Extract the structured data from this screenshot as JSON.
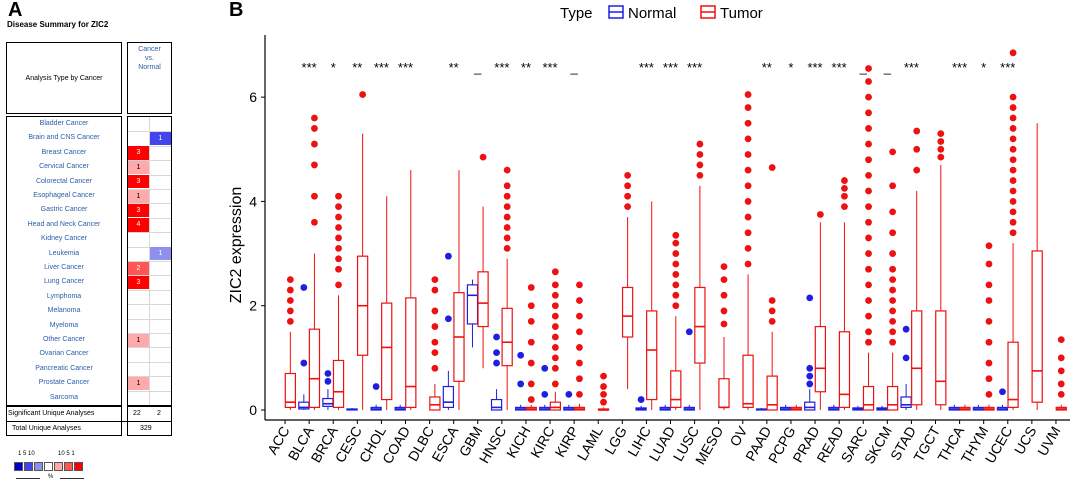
{
  "panel_a": {
    "letter": "A",
    "title": "Disease Summary for ZIC2",
    "header_left": "Analysis Type by Cancer",
    "header_right": "Cancer\nvs.\nNormal",
    "rows": [
      {
        "label": "Bladder Cancer",
        "up": "",
        "down": ""
      },
      {
        "label": "Brain and CNS Cancer",
        "up": "",
        "down": "1"
      },
      {
        "label": "Breast Cancer",
        "up": "3",
        "down": ""
      },
      {
        "label": "Cervical Cancer",
        "up": "1",
        "down": ""
      },
      {
        "label": "Colorectal Cancer",
        "up": "3",
        "down": ""
      },
      {
        "label": "Esophageal Cancer",
        "up": "1",
        "down": ""
      },
      {
        "label": "Gastric Cancer",
        "up": "3",
        "down": ""
      },
      {
        "label": "Head and Neck Cancer",
        "up": "4",
        "down": ""
      },
      {
        "label": "Kidney Cancer",
        "up": "",
        "down": ""
      },
      {
        "label": "Leukemia",
        "up": "",
        "down": "1"
      },
      {
        "label": "Liver Cancer",
        "up": "2",
        "down": ""
      },
      {
        "label": "Lung Cancer",
        "up": "3",
        "down": ""
      },
      {
        "label": "Lymphoma",
        "up": "",
        "down": ""
      },
      {
        "label": "Melanoma",
        "up": "",
        "down": ""
      },
      {
        "label": "Myeloma",
        "up": "",
        "down": ""
      },
      {
        "label": "Other Cancer",
        "up": "1",
        "down": ""
      },
      {
        "label": "Ovarian Cancer",
        "up": "",
        "down": ""
      },
      {
        "label": "Pancreatic Cancer",
        "up": "",
        "down": ""
      },
      {
        "label": "Prostate Cancer",
        "up": "1",
        "down": ""
      },
      {
        "label": "Sarcoma",
        "up": "",
        "down": ""
      }
    ],
    "cell_colors": {
      "up_strong": "#ff0000",
      "up_mid": "#ff5555",
      "up_weak": "#ffaaaa",
      "down_weak": "#8f8fee",
      "down_strong": "#4444ee"
    },
    "summary_sig_label": "Significant Unique Analyses",
    "summary_sig_up": "22",
    "summary_sig_down": "2",
    "summary_total_label": "Total Unique Analyses",
    "summary_total": "329",
    "legend_labels": {
      "left": "1  5  10",
      "right": "10  5  1",
      "unit": "%"
    },
    "legend_colors": [
      "#0000cc",
      "#4444ee",
      "#8f8fee",
      "#ffffff",
      "#ffaaaa",
      "#ff5555",
      "#ff0000"
    ]
  },
  "panel_b": {
    "letter": "B",
    "legend_title": "Type",
    "legend_normal": "Normal",
    "legend_tumor": "Tumor",
    "normal_color": "#1f1fe0",
    "tumor_color": "#ee1111"
  },
  "chart_data": {
    "type": "box",
    "title": "",
    "ylabel": "ZIC2 expression",
    "xlabel": "",
    "ylim": [
      0,
      7
    ],
    "yticks": [
      0,
      2,
      4,
      6
    ],
    "series_names": [
      "Normal",
      "Tumor"
    ],
    "categories": [
      "ACC",
      "BLCA",
      "BRCA",
      "CESC",
      "CHOL",
      "COAD",
      "DLBC",
      "ESCA",
      "GBM",
      "HNSC",
      "KICH",
      "KIRC",
      "KIRP",
      "LAML",
      "LGG",
      "LIHC",
      "LUAD",
      "LUSC",
      "MESO",
      "OV",
      "PAAD",
      "PCPG",
      "PRAD",
      "READ",
      "SARC",
      "SKCM",
      "STAD",
      "TGCT",
      "THCA",
      "THYM",
      "UCEC",
      "UCS",
      "UVM"
    ],
    "significance": [
      "",
      "***",
      "*",
      "**",
      "***",
      "***",
      "",
      "**",
      "_",
      "***",
      "**",
      "***",
      "_",
      "",
      "",
      "***",
      "***",
      "***",
      "",
      "",
      "**",
      "*",
      "***",
      "***",
      "_",
      "_",
      "***",
      "",
      "***",
      "*",
      "***",
      "",
      ""
    ],
    "tumor": [
      {
        "q1": 0.05,
        "med": 0.15,
        "q3": 0.7,
        "lo": 0.0,
        "hi": 1.5,
        "out": [
          1.7,
          1.9,
          2.1,
          2.3,
          2.5
        ]
      },
      {
        "q1": 0.05,
        "med": 0.6,
        "q3": 1.55,
        "lo": 0.0,
        "hi": 3.0,
        "out": [
          3.6,
          4.1,
          4.7,
          5.1,
          5.4,
          5.6
        ]
      },
      {
        "q1": 0.05,
        "med": 0.35,
        "q3": 0.95,
        "lo": 0.0,
        "hi": 2.2,
        "out": [
          2.4,
          2.7,
          2.9,
          3.1,
          3.3,
          3.5,
          3.7,
          3.9,
          4.1
        ]
      },
      {
        "q1": 1.05,
        "med": 2.0,
        "q3": 2.95,
        "lo": 0.0,
        "hi": 5.3,
        "out": [
          6.05
        ]
      },
      {
        "q1": 0.2,
        "med": 1.2,
        "q3": 2.05,
        "lo": 0.0,
        "hi": 4.1,
        "out": []
      },
      {
        "q1": 0.05,
        "med": 0.45,
        "q3": 2.15,
        "lo": 0.0,
        "hi": 4.6,
        "out": []
      },
      {
        "q1": 0.0,
        "med": 0.1,
        "q3": 0.25,
        "lo": 0.0,
        "hi": 0.5,
        "out": [
          0.8,
          1.1,
          1.3,
          1.6,
          1.9,
          2.3,
          2.5
        ]
      },
      {
        "q1": 0.55,
        "med": 1.4,
        "q3": 2.25,
        "lo": 0.0,
        "hi": 4.6,
        "out": []
      },
      {
        "q1": 1.6,
        "med": 2.05,
        "q3": 2.65,
        "lo": 0.8,
        "hi": 3.9,
        "out": [
          4.85
        ]
      },
      {
        "q1": 0.85,
        "med": 1.3,
        "q3": 1.95,
        "lo": 0.0,
        "hi": 2.9,
        "out": [
          3.1,
          3.3,
          3.5,
          3.7,
          3.9,
          4.1,
          4.3,
          4.6
        ]
      },
      {
        "q1": 0.0,
        "med": 0.02,
        "q3": 0.05,
        "lo": 0.0,
        "hi": 0.1,
        "out": [
          0.2,
          0.5,
          0.9,
          1.3,
          1.7,
          2.0,
          2.35
        ]
      },
      {
        "q1": 0.0,
        "med": 0.05,
        "q3": 0.15,
        "lo": 0.0,
        "hi": 0.35,
        "out": [
          0.5,
          0.8,
          1.0,
          1.2,
          1.4,
          1.6,
          1.8,
          2.0,
          2.2,
          2.4,
          2.65
        ]
      },
      {
        "q1": 0.0,
        "med": 0.02,
        "q3": 0.05,
        "lo": 0.0,
        "hi": 0.12,
        "out": [
          0.3,
          0.6,
          0.9,
          1.2,
          1.5,
          1.8,
          2.1,
          2.4
        ]
      },
      {
        "q1": 0.0,
        "med": 0.0,
        "q3": 0.02,
        "lo": 0.0,
        "hi": 0.05,
        "out": [
          0.15,
          0.3,
          0.45,
          0.65
        ]
      },
      {
        "q1": 1.4,
        "med": 1.8,
        "q3": 2.35,
        "lo": 0.4,
        "hi": 3.7,
        "out": [
          3.9,
          4.1,
          4.3,
          4.5
        ]
      },
      {
        "q1": 0.2,
        "med": 1.15,
        "q3": 1.9,
        "lo": 0.0,
        "hi": 4.0,
        "out": []
      },
      {
        "q1": 0.05,
        "med": 0.2,
        "q3": 0.75,
        "lo": 0.0,
        "hi": 1.8,
        "out": [
          2.0,
          2.2,
          2.4,
          2.6,
          2.8,
          3.0,
          3.2,
          3.35
        ]
      },
      {
        "q1": 0.9,
        "med": 1.6,
        "q3": 2.35,
        "lo": 0.0,
        "hi": 4.3,
        "out": [
          4.5,
          4.7,
          4.9,
          5.1
        ]
      },
      {
        "q1": 0.05,
        "med": 0.05,
        "q3": 0.6,
        "lo": 0.0,
        "hi": 1.4,
        "out": [
          1.65,
          1.9,
          2.2,
          2.5,
          2.75
        ]
      },
      {
        "q1": 0.05,
        "med": 0.12,
        "q3": 1.05,
        "lo": 0.0,
        "hi": 2.6,
        "out": [
          2.8,
          3.1,
          3.4,
          3.7,
          4.0,
          4.3,
          4.6,
          4.9,
          5.2,
          5.5,
          5.8,
          6.05
        ]
      },
      {
        "q1": 0.0,
        "med": 0.1,
        "q3": 0.65,
        "lo": 0.0,
        "hi": 1.5,
        "out": [
          1.7,
          1.9,
          2.1,
          4.65
        ]
      },
      {
        "q1": 0.0,
        "med": 0.02,
        "q3": 0.05,
        "lo": 0.0,
        "hi": 0.1,
        "out": []
      },
      {
        "q1": 0.35,
        "med": 0.8,
        "q3": 1.6,
        "lo": 0.0,
        "hi": 3.6,
        "out": [
          3.75
        ]
      },
      {
        "q1": 0.05,
        "med": 0.3,
        "q3": 1.5,
        "lo": 0.0,
        "hi": 3.6,
        "out": [
          3.9,
          4.1,
          4.25,
          4.4
        ]
      },
      {
        "q1": 0.0,
        "med": 0.1,
        "q3": 0.45,
        "lo": 0.0,
        "hi": 1.1,
        "out": [
          1.3,
          1.5,
          1.8,
          2.1,
          2.4,
          2.7,
          3.0,
          3.3,
          3.6,
          3.9,
          4.2,
          4.5,
          4.8,
          5.1,
          5.4,
          5.7,
          6.0,
          6.3,
          6.55
        ]
      },
      {
        "q1": 0.0,
        "med": 0.1,
        "q3": 0.45,
        "lo": 0.0,
        "hi": 1.1,
        "out": [
          1.3,
          1.5,
          1.7,
          1.9,
          2.1,
          2.3,
          2.5,
          2.7,
          3.0,
          3.4,
          3.8,
          4.3,
          4.95
        ]
      },
      {
        "q1": 0.1,
        "med": 0.8,
        "q3": 1.9,
        "lo": 0.0,
        "hi": 4.2,
        "out": [
          4.6,
          5.0,
          5.35
        ]
      },
      {
        "q1": 0.1,
        "med": 0.55,
        "q3": 1.9,
        "lo": 0.0,
        "hi": 4.7,
        "out": [
          4.85,
          5.0,
          5.15,
          5.3
        ]
      },
      {
        "q1": 0.0,
        "med": 0.02,
        "q3": 0.05,
        "lo": 0.0,
        "hi": 0.1,
        "out": []
      },
      {
        "q1": 0.0,
        "med": 0.02,
        "q3": 0.05,
        "lo": 0.0,
        "hi": 0.1,
        "out": [
          0.3,
          0.6,
          0.9,
          1.3,
          1.7,
          2.1,
          2.4,
          2.8,
          3.15
        ]
      },
      {
        "q1": 0.05,
        "med": 0.2,
        "q3": 1.3,
        "lo": 0.0,
        "hi": 3.2,
        "out": [
          3.4,
          3.6,
          3.8,
          4.0,
          4.2,
          4.4,
          4.6,
          4.8,
          5.0,
          5.2,
          5.4,
          5.6,
          5.8,
          6.0,
          6.85
        ]
      },
      {
        "q1": 0.15,
        "med": 0.75,
        "q3": 3.05,
        "lo": 0.0,
        "hi": 5.5,
        "out": []
      },
      {
        "q1": 0.0,
        "med": 0.02,
        "q3": 0.05,
        "lo": 0.0,
        "hi": 0.1,
        "out": [
          0.3,
          0.5,
          0.75,
          1.0,
          1.35
        ]
      }
    ],
    "normal": [
      null,
      {
        "q1": 0.02,
        "med": 0.05,
        "q3": 0.15,
        "lo": 0.0,
        "hi": 0.3,
        "out": [
          0.9,
          2.35
        ]
      },
      {
        "q1": 0.07,
        "med": 0.12,
        "q3": 0.22,
        "lo": 0.0,
        "hi": 0.4,
        "out": [
          0.55,
          0.7
        ]
      },
      {
        "q1": 0.0,
        "med": 0.01,
        "q3": 0.02,
        "lo": 0.0,
        "hi": 0.04,
        "out": []
      },
      {
        "q1": 0.0,
        "med": 0.02,
        "q3": 0.05,
        "lo": 0.0,
        "hi": 0.1,
        "out": [
          0.45
        ]
      },
      {
        "q1": 0.0,
        "med": 0.02,
        "q3": 0.05,
        "lo": 0.0,
        "hi": 0.1,
        "out": []
      },
      null,
      {
        "q1": 0.05,
        "med": 0.15,
        "q3": 0.45,
        "lo": 0.0,
        "hi": 0.75,
        "out": [
          1.75,
          2.95
        ]
      },
      {
        "q1": 1.65,
        "med": 2.2,
        "q3": 2.4,
        "lo": 1.2,
        "hi": 2.5,
        "out": []
      },
      {
        "q1": 0.0,
        "med": 0.05,
        "q3": 0.2,
        "lo": 0.0,
        "hi": 0.4,
        "out": [
          0.9,
          1.1,
          1.4
        ]
      },
      {
        "q1": 0.0,
        "med": 0.02,
        "q3": 0.05,
        "lo": 0.0,
        "hi": 0.1,
        "out": [
          0.5,
          1.05
        ]
      },
      {
        "q1": 0.0,
        "med": 0.02,
        "q3": 0.05,
        "lo": 0.0,
        "hi": 0.1,
        "out": [
          0.3,
          0.8
        ]
      },
      {
        "q1": 0.0,
        "med": 0.02,
        "q3": 0.05,
        "lo": 0.0,
        "hi": 0.1,
        "out": [
          0.3
        ]
      },
      null,
      null,
      {
        "q1": 0.0,
        "med": 0.02,
        "q3": 0.04,
        "lo": 0.0,
        "hi": 0.08,
        "out": [
          0.2
        ]
      },
      {
        "q1": 0.0,
        "med": 0.02,
        "q3": 0.05,
        "lo": 0.0,
        "hi": 0.1,
        "out": []
      },
      {
        "q1": 0.0,
        "med": 0.02,
        "q3": 0.05,
        "lo": 0.0,
        "hi": 0.1,
        "out": [
          1.5
        ]
      },
      null,
      null,
      {
        "q1": 0.0,
        "med": 0.01,
        "q3": 0.02,
        "lo": 0.0,
        "hi": 0.04,
        "out": []
      },
      {
        "q1": 0.0,
        "med": 0.02,
        "q3": 0.05,
        "lo": 0.0,
        "hi": 0.1,
        "out": []
      },
      {
        "q1": 0.0,
        "med": 0.05,
        "q3": 0.15,
        "lo": 0.0,
        "hi": 0.4,
        "out": [
          0.5,
          0.65,
          0.8,
          2.15
        ]
      },
      {
        "q1": 0.0,
        "med": 0.02,
        "q3": 0.05,
        "lo": 0.0,
        "hi": 0.1,
        "out": []
      },
      {
        "q1": 0.0,
        "med": 0.02,
        "q3": 0.04,
        "lo": 0.0,
        "hi": 0.08,
        "out": []
      },
      {
        "q1": 0.0,
        "med": 0.02,
        "q3": 0.04,
        "lo": 0.0,
        "hi": 0.08,
        "out": []
      },
      {
        "q1": 0.05,
        "med": 0.1,
        "q3": 0.25,
        "lo": 0.0,
        "hi": 0.5,
        "out": [
          1.0,
          1.55
        ]
      },
      null,
      {
        "q1": 0.0,
        "med": 0.02,
        "q3": 0.05,
        "lo": 0.0,
        "hi": 0.1,
        "out": []
      },
      {
        "q1": 0.0,
        "med": 0.02,
        "q3": 0.05,
        "lo": 0.0,
        "hi": 0.1,
        "out": []
      },
      {
        "q1": 0.0,
        "med": 0.02,
        "q3": 0.05,
        "lo": 0.0,
        "hi": 0.1,
        "out": [
          0.35
        ]
      },
      null,
      null
    ]
  }
}
